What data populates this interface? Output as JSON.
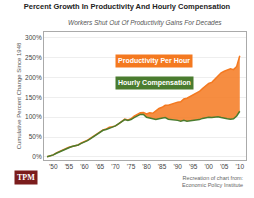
{
  "chart_data": {
    "type": "line",
    "title": "Percent Growth In Productivity And Hourly Compensation",
    "subtitle": "Workers Shut Out Of Productivity Gains For Decades",
    "y_label": "Cumulative Percent Change Since 1948",
    "x": [
      1948,
      1949,
      1950,
      1951,
      1952,
      1953,
      1954,
      1955,
      1956,
      1957,
      1958,
      1959,
      1960,
      1961,
      1962,
      1963,
      1964,
      1965,
      1966,
      1967,
      1968,
      1969,
      1970,
      1971,
      1972,
      1973,
      1974,
      1975,
      1976,
      1977,
      1978,
      1979,
      1980,
      1981,
      1982,
      1983,
      1984,
      1985,
      1986,
      1987,
      1988,
      1989,
      1990,
      1991,
      1992,
      1993,
      1994,
      1995,
      1996,
      1997,
      1998,
      1999,
      2000,
      2001,
      2002,
      2003,
      2004,
      2005,
      2006,
      2007,
      2008,
      2009,
      2010
    ],
    "series": [
      {
        "name": "Productivity Per Hour",
        "color": "#f47920",
        "values": [
          0,
          2,
          5,
          10,
          14,
          18,
          20,
          24,
          26,
          28,
          30,
          35,
          38,
          42,
          47,
          52,
          57,
          63,
          68,
          70,
          75,
          76,
          78,
          83,
          90,
          95,
          93,
          96,
          103,
          107,
          111,
          112,
          108,
          111,
          110,
          116,
          122,
          125,
          130,
          130,
          133,
          136,
          138,
          139,
          146,
          148,
          152,
          155,
          160,
          165,
          172,
          178,
          185,
          188,
          196,
          205,
          212,
          216,
          220,
          222,
          220,
          228,
          255
        ]
      },
      {
        "name": "Hourly Compensation",
        "color": "#4a7c2f",
        "values": [
          0,
          2,
          5,
          9,
          13,
          17,
          19,
          23,
          26,
          28,
          30,
          34,
          37,
          41,
          46,
          51,
          56,
          62,
          67,
          69,
          73,
          75,
          78,
          83,
          89,
          94,
          92,
          94,
          99,
          103,
          107,
          107,
          100,
          98,
          95,
          94,
          96,
          97,
          99,
          95,
          94,
          94,
          92,
          90,
          92,
          90,
          91,
          91,
          93,
          94,
          97,
          99,
          100,
          99,
          100,
          101,
          99,
          97,
          96,
          95,
          96,
          103,
          115
        ]
      }
    ],
    "xlim": [
      1947,
      2012
    ],
    "xticks": [
      {
        "value": 1950,
        "label": "'50"
      },
      {
        "value": 1955,
        "label": "'55"
      },
      {
        "value": 1960,
        "label": "'60"
      },
      {
        "value": 1965,
        "label": "'65"
      },
      {
        "value": 1970,
        "label": "'70"
      },
      {
        "value": 1975,
        "label": "'75"
      },
      {
        "value": 1980,
        "label": "'80"
      },
      {
        "value": 1985,
        "label": "'85"
      },
      {
        "value": 1990,
        "label": "'90"
      },
      {
        "value": 1995,
        "label": "'95"
      },
      {
        "value": 2000,
        "label": "'00"
      },
      {
        "value": 2005,
        "label": "'05"
      },
      {
        "value": 2010,
        "label": "'10"
      }
    ],
    "ylim": [
      -8,
      315
    ],
    "yticks": [
      {
        "value": 0,
        "label": "0%"
      },
      {
        "value": 50,
        "label": "50%"
      },
      {
        "value": 100,
        "label": "100%"
      },
      {
        "value": 150,
        "label": "150%"
      },
      {
        "value": 200,
        "label": "200%"
      },
      {
        "value": 250,
        "label": "250%"
      },
      {
        "value": 300,
        "label": "300%"
      }
    ],
    "grid": "y",
    "annotations": [
      "Recreation of chart from:\nEconomic Policy Institute",
      "TPM"
    ]
  }
}
